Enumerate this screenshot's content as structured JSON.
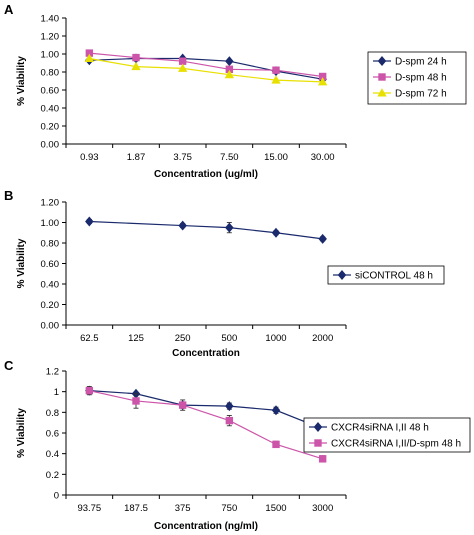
{
  "chart_data": [
    {
      "type": "line",
      "panel": "A",
      "categories": [
        "0.93",
        "1.87",
        "3.75",
        "7.50",
        "15.00",
        "30.00"
      ],
      "xlabel": "Concentration (ug/ml)",
      "ylabel": "% Viability",
      "yticks": [
        "0.00",
        "0.20",
        "0.40",
        "0.60",
        "0.80",
        "1.00",
        "1.20",
        "1.40"
      ],
      "ylim": [
        0,
        1.4
      ],
      "grid": false,
      "legend_position": "right",
      "series": [
        {
          "name": "D-spm 24 h",
          "color": "#1a2a6c",
          "marker": "diamond",
          "values": [
            0.93,
            0.95,
            0.95,
            0.92,
            0.81,
            0.72
          ]
        },
        {
          "name": "D-spm 48 h",
          "color": "#cc55aa",
          "marker": "square",
          "values": [
            1.01,
            0.96,
            0.92,
            0.83,
            0.82,
            0.75
          ]
        },
        {
          "name": "D-spm 72 h",
          "color": "#e8e000",
          "marker": "triangle",
          "values": [
            0.95,
            0.86,
            0.84,
            0.77,
            0.71,
            0.69
          ]
        }
      ]
    },
    {
      "type": "line",
      "panel": "B",
      "categories": [
        "62.5",
        "125",
        "250",
        "500",
        "1000",
        "2000"
      ],
      "xlabel": "Concentration",
      "ylabel": "% Viability",
      "yticks": [
        "0.00",
        "0.20",
        "0.40",
        "0.60",
        "0.80",
        "1.00",
        "1.20"
      ],
      "ylim": [
        0,
        1.2
      ],
      "grid": false,
      "legend_position": "right",
      "series": [
        {
          "name": "siCONTROL 48 h",
          "color": "#1a2a6c",
          "marker": "diamond",
          "error_bars": true,
          "values": [
            1.01,
            null,
            0.97,
            0.95,
            0.9,
            0.84
          ],
          "errors": [
            0.02,
            null,
            0.02,
            0.05,
            0.02,
            0.02
          ]
        }
      ]
    },
    {
      "type": "line",
      "panel": "C",
      "categories": [
        "93.75",
        "187.5",
        "375",
        "750",
        "1500",
        "3000"
      ],
      "xlabel": "Concentration (ng/ml)",
      "ylabel": "% Viability",
      "yticks": [
        "0",
        "0.2",
        "0.4",
        "0.6",
        "0.8",
        "1",
        "1.2"
      ],
      "ylim": [
        0,
        1.2
      ],
      "grid": false,
      "legend_position": "right",
      "series": [
        {
          "name": "CXCR4siRNA I,II 48 h",
          "color": "#1a2a6c",
          "marker": "diamond",
          "error_bars": true,
          "values": [
            1.01,
            0.98,
            0.87,
            0.86,
            0.82,
            0.64
          ],
          "errors": [
            0.02,
            0.0,
            0.03,
            0.03,
            0.03,
            0.03
          ]
        },
        {
          "name": "CXCR4siRNA I,II/D-spm 48 h",
          "color": "#cc55aa",
          "marker": "square",
          "error_bars": true,
          "values": [
            1.01,
            0.91,
            0.87,
            0.72,
            0.49,
            0.35
          ],
          "errors": [
            0.04,
            0.07,
            0.05,
            0.05,
            0.03,
            0.03
          ]
        }
      ]
    }
  ]
}
